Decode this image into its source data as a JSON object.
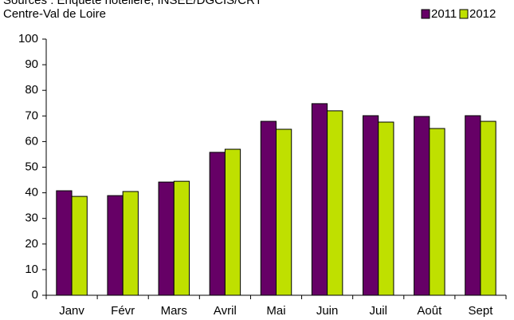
{
  "chart_data": {
    "type": "bar",
    "title": "Sources : Enquête hôtelière, INSEE/DGCIS/CRT",
    "subtitle": "Centre-Val de Loire",
    "categories": [
      "Janv",
      "Févr",
      "Mars",
      "Avril",
      "Mai",
      "Juin",
      "Juil",
      "Août",
      "Sept"
    ],
    "series": [
      {
        "name": "2011",
        "color": "#660066",
        "values": [
          40.8,
          38.9,
          44.2,
          55.8,
          67.9,
          74.8,
          70.1,
          69.8,
          70.1
        ]
      },
      {
        "name": "2012",
        "color": "#bfe000",
        "values": [
          38.6,
          40.5,
          44.5,
          57.0,
          64.8,
          72.0,
          67.6,
          65.1,
          67.9
        ]
      }
    ],
    "ylim": [
      0,
      100
    ],
    "yticks": [
      0,
      10,
      20,
      30,
      40,
      50,
      60,
      70,
      80,
      90,
      100
    ],
    "legend": "top-right"
  }
}
